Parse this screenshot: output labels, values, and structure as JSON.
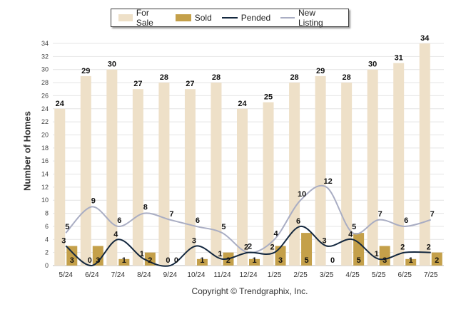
{
  "chart_data": {
    "type": "bar",
    "categories": [
      "5/24",
      "6/24",
      "7/24",
      "8/24",
      "9/24",
      "10/24",
      "11/24",
      "12/24",
      "1/25",
      "2/25",
      "3/25",
      "4/25",
      "5/25",
      "6/25",
      "7/25"
    ],
    "ylabel": "Number of Homes",
    "xlabel": "",
    "ylim": [
      0,
      34
    ],
    "yticks": [
      0,
      2,
      4,
      6,
      8,
      10,
      12,
      14,
      16,
      18,
      20,
      22,
      24,
      26,
      28,
      30,
      32,
      34
    ],
    "grid": true,
    "legend_position": "top",
    "series": [
      {
        "name": "For Sale",
        "kind": "bar",
        "color": "#eee0c8",
        "values": [
          24,
          29,
          30,
          27,
          28,
          27,
          28,
          24,
          25,
          28,
          29,
          28,
          30,
          31,
          34
        ]
      },
      {
        "name": "Sold",
        "kind": "bar",
        "color": "#c4a04a",
        "values": [
          3,
          3,
          1,
          2,
          0,
          1,
          2,
          1,
          3,
          5,
          0,
          5,
          3,
          1,
          2
        ]
      },
      {
        "name": "Pended",
        "kind": "line",
        "color": "#14283f",
        "values": [
          3,
          0,
          4,
          1,
          0,
          3,
          1,
          2,
          2,
          6,
          3,
          4,
          1,
          2,
          2
        ]
      },
      {
        "name": "New Listing",
        "kind": "line",
        "color": "#a9adc3",
        "values": [
          5,
          9,
          6,
          8,
          7,
          6,
          5,
          2,
          4,
          10,
          12,
          5,
          7,
          6,
          7
        ]
      }
    ]
  },
  "footer": {
    "copyright": "Copyright © Trendgraphix, Inc."
  }
}
